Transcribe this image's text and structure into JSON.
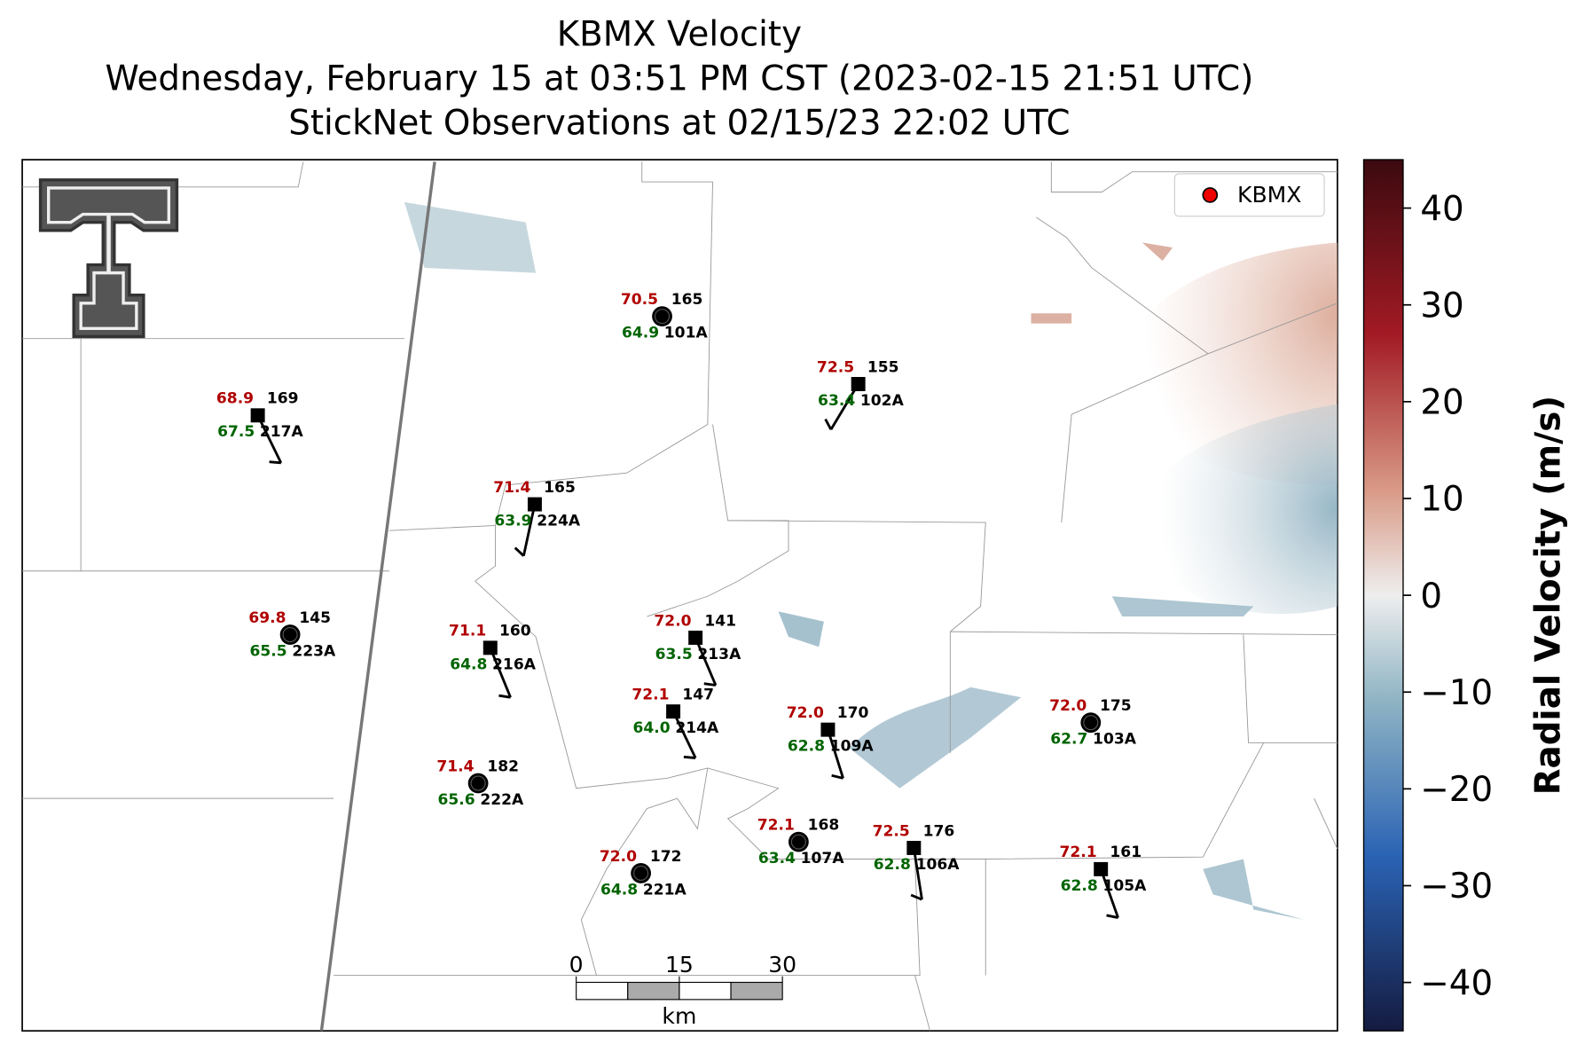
{
  "header": {
    "title": "KBMX Velocity",
    "subtitle": "Wednesday, February 15 at 03:51 PM CST (2023-02-15 21:51 UTC)",
    "observations": "StickNet Observations at 02/15/23 22:02 UTC"
  },
  "legend": {
    "label": "KBMX"
  },
  "stations": [
    {
      "id": "101A",
      "temperature": "70.5",
      "dewpoint": "64.9",
      "pressure": "165"
    },
    {
      "id": "102A",
      "temperature": "72.5",
      "dewpoint": "63.4",
      "pressure": "155"
    },
    {
      "id": "217A",
      "temperature": "68.9",
      "dewpoint": "67.5",
      "pressure": "169"
    },
    {
      "id": "224A",
      "temperature": "71.4",
      "dewpoint": "63.9",
      "pressure": "165"
    },
    {
      "id": "223A",
      "temperature": "69.8",
      "dewpoint": "65.5",
      "pressure": "145"
    },
    {
      "id": "216A",
      "temperature": "71.1",
      "dewpoint": "64.8",
      "pressure": "160"
    },
    {
      "id": "213A",
      "temperature": "72.0",
      "dewpoint": "63.5",
      "pressure": "141"
    },
    {
      "id": "214A",
      "temperature": "72.1",
      "dewpoint": "64.0",
      "pressure": "147"
    },
    {
      "id": "109A",
      "temperature": "72.0",
      "dewpoint": "62.8",
      "pressure": "170"
    },
    {
      "id": "103A",
      "temperature": "72.0",
      "dewpoint": "62.7",
      "pressure": "175"
    },
    {
      "id": "222A",
      "temperature": "71.4",
      "dewpoint": "65.6",
      "pressure": "182"
    },
    {
      "id": "107A",
      "temperature": "72.1",
      "dewpoint": "63.4",
      "pressure": "168"
    },
    {
      "id": "106A",
      "temperature": "72.5",
      "dewpoint": "62.8",
      "pressure": "176"
    },
    {
      "id": "221A",
      "temperature": "72.0",
      "dewpoint": "64.8",
      "pressure": "172"
    },
    {
      "id": "105A",
      "temperature": "72.1",
      "dewpoint": "62.8",
      "pressure": "161"
    }
  ],
  "scale_bar": {
    "unit": "km",
    "ticks": [
      0,
      15,
      30
    ]
  },
  "colorbar": {
    "label": "Radial Velocity (m/s)",
    "lim": [
      -45,
      45
    ],
    "ticks": [
      {
        "value": -40,
        "label": "−40"
      },
      {
        "value": -30,
        "label": "−30"
      },
      {
        "value": -20,
        "label": "−20"
      },
      {
        "value": -10,
        "label": "−10"
      },
      0,
      10,
      20,
      30,
      40
    ]
  }
}
